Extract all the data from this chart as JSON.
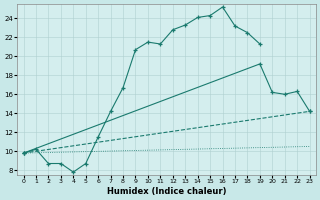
{
  "xlabel": "Humidex (Indice chaleur)",
  "bg_color": "#d4eeee",
  "fig_color": "#c8e8e8",
  "line_color": "#1a7a6e",
  "xlim": [
    -0.5,
    23.5
  ],
  "ylim": [
    7.5,
    25.5
  ],
  "xticks": [
    0,
    1,
    2,
    3,
    4,
    5,
    6,
    7,
    8,
    9,
    10,
    11,
    12,
    13,
    14,
    15,
    16,
    17,
    18,
    19,
    20,
    21,
    22,
    23
  ],
  "yticks": [
    8,
    10,
    12,
    14,
    16,
    18,
    20,
    22,
    24
  ],
  "line1_x": [
    0,
    1,
    2,
    3,
    4,
    5,
    6,
    7,
    8,
    9,
    10,
    11,
    12,
    13,
    14,
    15,
    16,
    17,
    18,
    19
  ],
  "line1_y": [
    9.8,
    10.2,
    8.7,
    8.7,
    7.8,
    8.7,
    11.5,
    14.2,
    16.7,
    20.7,
    21.5,
    21.3,
    22.8,
    23.3,
    24.1,
    24.3,
    25.2,
    23.2,
    22.5,
    21.3
  ],
  "line2_x": [
    0,
    19,
    20,
    21,
    22,
    23
  ],
  "line2_y": [
    9.8,
    19.2,
    16.2,
    16.0,
    16.3,
    14.2
  ],
  "line3_x": [
    0,
    23
  ],
  "line3_y": [
    9.8,
    14.2
  ],
  "line4_x": [
    0,
    23
  ],
  "line4_y": [
    9.8,
    10.5
  ]
}
